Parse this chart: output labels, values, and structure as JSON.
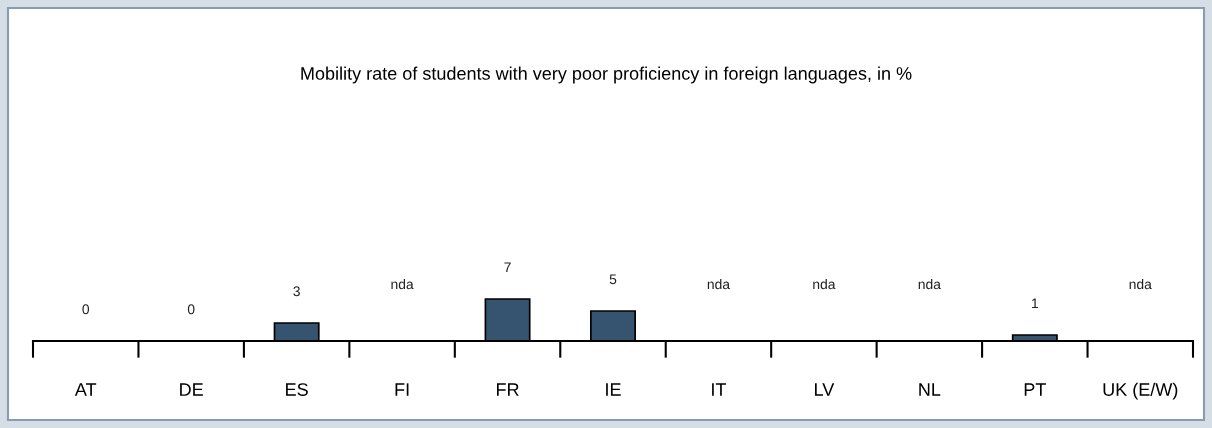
{
  "chart_data": {
    "type": "bar",
    "title": "Mobility rate of students with very poor proficiency in foreign languages, in %",
    "categories": [
      "AT",
      "DE",
      "ES",
      "FI",
      "FR",
      "IE",
      "IT",
      "LV",
      "NL",
      "PT",
      "UK (E/W)"
    ],
    "values": [
      0,
      0,
      3,
      null,
      7,
      5,
      null,
      null,
      null,
      1,
      null
    ],
    "value_labels": [
      "0",
      "0",
      "3",
      "nda",
      "7",
      "5",
      "nda",
      "nda",
      "nda",
      "1",
      "nda"
    ],
    "color": "#36536f"
  }
}
